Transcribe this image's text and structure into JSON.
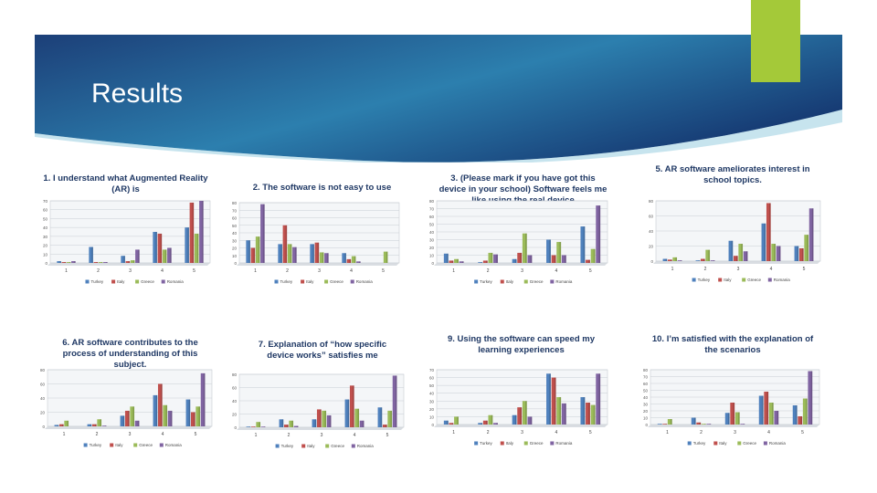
{
  "slide": {
    "title": "Results"
  },
  "colors": {
    "banner_dark": "#1c3f78",
    "banner_light": "#2f8fb3",
    "accent": "#a4c939",
    "series": [
      "#4f81bd",
      "#c0504d",
      "#9bbb59",
      "#8064a2"
    ]
  },
  "chart_data": [
    {
      "type": "bar",
      "title": "1. I understand what Augmented Reality (AR) is",
      "categories": [
        "1",
        "2",
        "3",
        "4",
        "5"
      ],
      "ylim": [
        0,
        70
      ],
      "yticks": [
        0,
        10,
        20,
        30,
        40,
        50,
        60,
        70
      ],
      "series": [
        {
          "name": "Turkey",
          "values": [
            2,
            18,
            8,
            35,
            40
          ]
        },
        {
          "name": "Italy",
          "values": [
            1,
            1,
            2,
            33,
            68
          ]
        },
        {
          "name": "Greece",
          "values": [
            1,
            1,
            3,
            15,
            33
          ]
        },
        {
          "name": "Romania",
          "values": [
            2,
            1,
            15,
            17,
            70
          ]
        }
      ]
    },
    {
      "type": "bar",
      "title": "2. The software is not easy to use",
      "categories": [
        "1",
        "2",
        "3",
        "4",
        "5"
      ],
      "ylim": [
        0,
        80
      ],
      "yticks": [
        0,
        10,
        20,
        30,
        40,
        50,
        60,
        70,
        80
      ],
      "series": [
        {
          "name": "Turkey",
          "values": [
            30,
            25,
            25,
            13,
            0
          ]
        },
        {
          "name": "Italy",
          "values": [
            20,
            50,
            27,
            5,
            0
          ]
        },
        {
          "name": "Greece",
          "values": [
            35,
            25,
            14,
            9,
            15
          ]
        },
        {
          "name": "Romania",
          "values": [
            78,
            21,
            13,
            2,
            0
          ]
        }
      ]
    },
    {
      "type": "bar",
      "title": "3. (Please mark if you have got this device in your school) Software feels me like using the real device",
      "categories": [
        "1",
        "2",
        "3",
        "4",
        "5"
      ],
      "ylim": [
        0,
        80
      ],
      "yticks": [
        0,
        10,
        20,
        30,
        40,
        50,
        60,
        70,
        80
      ],
      "series": [
        {
          "name": "Turkey",
          "values": [
            12,
            1,
            5,
            30,
            47
          ]
        },
        {
          "name": "Italy",
          "values": [
            3,
            3,
            13,
            10,
            4
          ]
        },
        {
          "name": "Greece",
          "values": [
            5,
            13,
            38,
            27,
            18
          ]
        },
        {
          "name": "Romania",
          "values": [
            2,
            11,
            10,
            10,
            74
          ]
        }
      ]
    },
    {
      "type": "bar",
      "title": "5. AR software ameliorates interest in school topics.",
      "categories": [
        "1",
        "2",
        "3",
        "4",
        "5"
      ],
      "ylim": [
        0,
        80
      ],
      "yticks": [
        0,
        20,
        40,
        60,
        80
      ],
      "series": [
        {
          "name": "Turkey",
          "values": [
            3,
            1,
            27,
            50,
            20
          ]
        },
        {
          "name": "Italy",
          "values": [
            2,
            3,
            7,
            77,
            17
          ]
        },
        {
          "name": "Greece",
          "values": [
            5,
            15,
            23,
            23,
            35
          ]
        },
        {
          "name": "Romania",
          "values": [
            1,
            1,
            13,
            20,
            70
          ]
        }
      ]
    },
    {
      "type": "bar",
      "title": "6. AR software contributes to the process of understanding of this subject.",
      "categories": [
        "1",
        "2",
        "3",
        "4",
        "5"
      ],
      "ylim": [
        0,
        80
      ],
      "yticks": [
        0,
        20,
        40,
        60,
        80
      ],
      "series": [
        {
          "name": "Turkey",
          "values": [
            2,
            3,
            15,
            44,
            38
          ]
        },
        {
          "name": "Italy",
          "values": [
            3,
            3,
            22,
            60,
            20
          ]
        },
        {
          "name": "Greece",
          "values": [
            8,
            10,
            28,
            30,
            28
          ]
        },
        {
          "name": "Romania",
          "values": [
            0,
            1,
            8,
            22,
            75
          ]
        }
      ]
    },
    {
      "type": "bar",
      "title": "7. Explanation of “how specific device works” satisfies me",
      "categories": [
        "1",
        "2",
        "3",
        "4",
        "5"
      ],
      "ylim": [
        0,
        80
      ],
      "yticks": [
        0,
        20,
        40,
        60,
        80
      ],
      "series": [
        {
          "name": "Turkey",
          "values": [
            1,
            12,
            12,
            42,
            30
          ]
        },
        {
          "name": "Italy",
          "values": [
            1,
            4,
            27,
            63,
            4
          ]
        },
        {
          "name": "Greece",
          "values": [
            8,
            10,
            25,
            28,
            25
          ]
        },
        {
          "name": "Romania",
          "values": [
            1,
            2,
            18,
            10,
            78
          ]
        }
      ]
    },
    {
      "type": "bar",
      "title": "9. Using the software can speed my learning experiences",
      "categories": [
        "1",
        "2",
        "3",
        "4",
        "5"
      ],
      "ylim": [
        0,
        70
      ],
      "yticks": [
        0,
        10,
        20,
        30,
        40,
        50,
        60,
        70
      ],
      "series": [
        {
          "name": "Turkey",
          "values": [
            5,
            2,
            12,
            65,
            35
          ]
        },
        {
          "name": "Italy",
          "values": [
            2,
            5,
            22,
            60,
            28
          ]
        },
        {
          "name": "Greece",
          "values": [
            10,
            12,
            30,
            35,
            25
          ]
        },
        {
          "name": "Romania",
          "values": [
            0,
            2,
            10,
            27,
            65
          ]
        }
      ]
    },
    {
      "type": "bar",
      "title": "10. I’m satisfied with the explanation of the scenarios",
      "categories": [
        "1",
        "2",
        "3",
        "4",
        "5"
      ],
      "ylim": [
        0,
        80
      ],
      "yticks": [
        0,
        10,
        20,
        30,
        40,
        50,
        60,
        70,
        80
      ],
      "series": [
        {
          "name": "Turkey",
          "values": [
            1,
            10,
            17,
            42,
            28
          ]
        },
        {
          "name": "Italy",
          "values": [
            1,
            3,
            32,
            48,
            12
          ]
        },
        {
          "name": "Greece",
          "values": [
            8,
            1,
            18,
            32,
            38
          ]
        },
        {
          "name": "Romania",
          "values": [
            0,
            1,
            1,
            20,
            78
          ]
        }
      ]
    }
  ]
}
